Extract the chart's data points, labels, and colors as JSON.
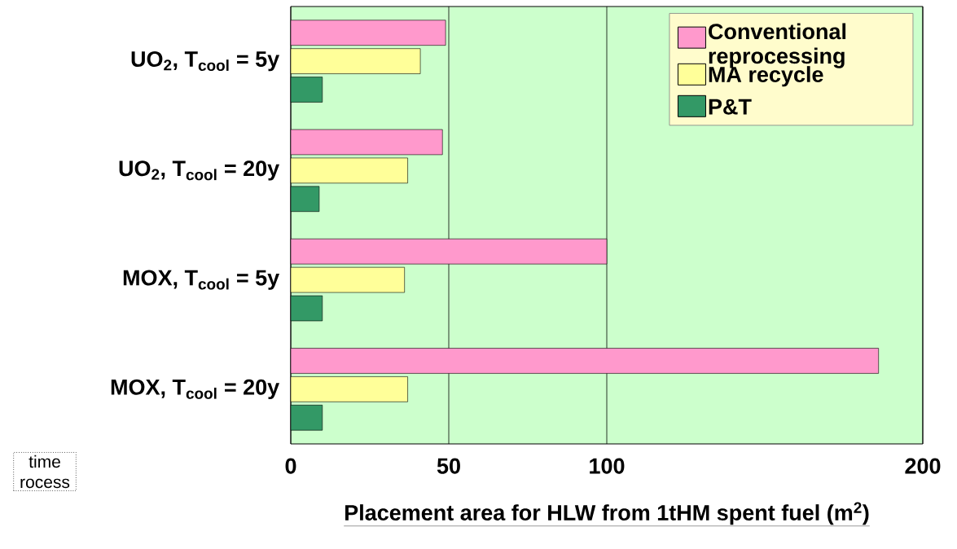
{
  "chart_data": {
    "type": "bar",
    "orientation": "horizontal",
    "categories": [
      "UO$_{2}$, T$_{cool}$ =  5y",
      "UO$_{2}$, T$_{cool}$ = 20y",
      "MOX, T$_{cool}$ =  5y",
      "MOX, T$_{cool}$ = 20y"
    ],
    "series": [
      {
        "name": "Conventional reprocessing",
        "color": "#ff99cc",
        "values": [
          49,
          48,
          100,
          186
        ]
      },
      {
        "name": "MA recycle",
        "color": "#ffff99",
        "values": [
          41,
          37,
          36,
          37
        ]
      },
      {
        "name": "P&T",
        "color": "#339966",
        "values": [
          10,
          9,
          10,
          10
        ]
      }
    ],
    "xlabel": "Placement area for HLW from 1tHM spent fuel (m$^{2}$)",
    "xlim": [
      0,
      200
    ],
    "xticks": [
      0,
      50,
      100,
      200
    ],
    "grid": "x",
    "legend": "top right",
    "annotations": [
      "time rocess"
    ]
  }
}
